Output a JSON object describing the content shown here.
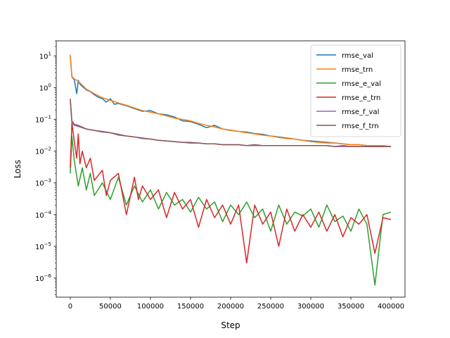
{
  "chart_data": {
    "type": "line",
    "title": "",
    "xlabel": "Step",
    "ylabel": "Loss",
    "xlim": [
      -17500,
      417500
    ],
    "ylim": [
      2.5e-07,
      30
    ],
    "yscale": "log",
    "grid": false,
    "legend_position": "top-right",
    "x_ticks": [
      0,
      50000,
      100000,
      150000,
      200000,
      250000,
      300000,
      350000,
      400000
    ],
    "x_tick_labels": [
      "0",
      "50000",
      "100000",
      "150000",
      "200000",
      "250000",
      "300000",
      "350000",
      "400000"
    ],
    "y_ticks": [
      1e-06,
      1e-05,
      0.0001,
      0.001,
      0.01,
      0.1,
      1,
      10
    ],
    "y_tick_labels": [
      {
        "base": "10",
        "exp": "−6"
      },
      {
        "base": "10",
        "exp": "−5"
      },
      {
        "base": "10",
        "exp": "−4"
      },
      {
        "base": "10",
        "exp": "−3"
      },
      {
        "base": "10",
        "exp": "−2"
      },
      {
        "base": "10",
        "exp": "−1"
      },
      {
        "base": "10",
        "exp": "0"
      },
      {
        "base": "10",
        "exp": "1"
      }
    ],
    "series": [
      {
        "name": "rmse_val",
        "color": "#1f77b4",
        "x": [
          0,
          2000,
          5000,
          8000,
          10000,
          12000,
          15000,
          20000,
          25000,
          30000,
          35000,
          40000,
          45000,
          50000,
          55000,
          60000,
          70000,
          80000,
          90000,
          100000,
          110000,
          120000,
          130000,
          140000,
          150000,
          160000,
          170000,
          180000,
          190000,
          200000,
          210000,
          220000,
          230000,
          240000,
          250000,
          260000,
          270000,
          280000,
          290000,
          300000,
          310000,
          320000,
          330000,
          340000,
          350000,
          360000,
          370000,
          380000,
          390000,
          400000
        ],
        "y": [
          10,
          2.2,
          1.8,
          0.65,
          1.7,
          1.3,
          1.1,
          0.85,
          0.75,
          0.6,
          0.5,
          0.45,
          0.35,
          0.45,
          0.3,
          0.32,
          0.27,
          0.22,
          0.18,
          0.19,
          0.15,
          0.14,
          0.12,
          0.09,
          0.085,
          0.07,
          0.055,
          0.065,
          0.05,
          0.045,
          0.042,
          0.04,
          0.036,
          0.034,
          0.03,
          0.028,
          0.026,
          0.024,
          0.022,
          0.021,
          0.02,
          0.019,
          0.018,
          0.017,
          0.016,
          0.016,
          0.015,
          0.015,
          0.014,
          0.014
        ]
      },
      {
        "name": "rmse_trn",
        "color": "#ff7f0e",
        "x": [
          0,
          2000,
          5000,
          10000,
          15000,
          20000,
          30000,
          40000,
          50000,
          60000,
          70000,
          80000,
          90000,
          100000,
          110000,
          120000,
          130000,
          140000,
          150000,
          160000,
          170000,
          180000,
          190000,
          200000,
          210000,
          220000,
          230000,
          240000,
          250000,
          260000,
          270000,
          280000,
          290000,
          300000,
          310000,
          320000,
          330000,
          340000,
          350000,
          360000,
          370000,
          380000,
          390000,
          400000
        ],
        "y": [
          11,
          2.3,
          1.9,
          1.6,
          1.2,
          0.9,
          0.65,
          0.48,
          0.4,
          0.33,
          0.28,
          0.23,
          0.19,
          0.17,
          0.15,
          0.13,
          0.11,
          0.1,
          0.09,
          0.075,
          0.065,
          0.058,
          0.05,
          0.046,
          0.042,
          0.038,
          0.035,
          0.032,
          0.03,
          0.027,
          0.025,
          0.024,
          0.022,
          0.02,
          0.019,
          0.018,
          0.018,
          0.017,
          0.016,
          0.016,
          0.015,
          0.015,
          0.015,
          0.014
        ]
      },
      {
        "name": "rmse_e_val",
        "color": "#2ca02c",
        "x": [
          0,
          2000,
          5000,
          10000,
          15000,
          20000,
          25000,
          30000,
          40000,
          50000,
          60000,
          70000,
          80000,
          90000,
          100000,
          110000,
          120000,
          130000,
          140000,
          150000,
          160000,
          170000,
          180000,
          190000,
          200000,
          210000,
          220000,
          230000,
          240000,
          250000,
          260000,
          270000,
          280000,
          290000,
          300000,
          310000,
          320000,
          330000,
          340000,
          350000,
          360000,
          370000,
          380000,
          390000,
          400000
        ],
        "y": [
          0.002,
          0.03,
          0.005,
          0.0008,
          0.003,
          0.0006,
          0.002,
          0.0004,
          0.001,
          0.0003,
          0.0015,
          0.0002,
          0.0008,
          0.00025,
          0.0006,
          0.00015,
          0.0005,
          0.0002,
          0.0003,
          0.00012,
          0.00035,
          0.00015,
          0.00025,
          6e-05,
          0.0002,
          0.0001,
          0.00025,
          8e-05,
          0.00015,
          3e-05,
          0.0002,
          5e-05,
          0.00012,
          9e-05,
          0.00015,
          4e-05,
          0.0002,
          6e-05,
          9e-05,
          3e-05,
          0.00015,
          5e-05,
          6e-07,
          0.0001,
          0.00012
        ]
      },
      {
        "name": "rmse_e_trn",
        "color": "#d62728",
        "x": [
          0,
          2000,
          5000,
          8000,
          10000,
          12000,
          15000,
          20000,
          25000,
          30000,
          40000,
          45000,
          50000,
          60000,
          70000,
          80000,
          85000,
          90000,
          100000,
          110000,
          120000,
          130000,
          140000,
          150000,
          160000,
          170000,
          180000,
          190000,
          200000,
          210000,
          220000,
          230000,
          240000,
          250000,
          260000,
          270000,
          280000,
          290000,
          300000,
          310000,
          320000,
          330000,
          340000,
          350000,
          360000,
          370000,
          380000,
          390000,
          400000
        ],
        "y": [
          0.003,
          0.08,
          0.02,
          0.006,
          0.035,
          0.004,
          0.01,
          0.003,
          0.006,
          0.0012,
          0.0025,
          0.0004,
          0.0012,
          0.002,
          0.0001,
          0.0015,
          0.0003,
          0.0008,
          0.0003,
          0.0006,
          8e-05,
          0.0005,
          0.00015,
          0.0003,
          4e-05,
          0.0003,
          8e-05,
          0.0002,
          5e-05,
          0.0002,
          3e-06,
          0.0002,
          5e-05,
          0.00012,
          1e-05,
          0.00015,
          3e-05,
          0.0001,
          4e-05,
          0.00012,
          3e-05,
          0.0001,
          2e-05,
          8e-05,
          5e-05,
          0.0001,
          6e-06,
          8e-05,
          7e-05
        ]
      },
      {
        "name": "rmse_f_val",
        "color": "#9467bd",
        "x": [
          0,
          2000,
          5000,
          10000,
          20000,
          30000,
          40000,
          50000,
          60000,
          70000,
          80000,
          90000,
          100000,
          110000,
          120000,
          130000,
          140000,
          150000,
          160000,
          170000,
          180000,
          190000,
          200000,
          210000,
          220000,
          230000,
          240000,
          250000,
          260000,
          270000,
          280000,
          290000,
          300000,
          310000,
          320000,
          330000,
          340000,
          350000,
          360000,
          370000,
          380000,
          390000,
          400000
        ],
        "y": [
          0.4,
          0.08,
          0.065,
          0.06,
          0.05,
          0.045,
          0.04,
          0.038,
          0.032,
          0.03,
          0.028,
          0.025,
          0.024,
          0.022,
          0.021,
          0.02,
          0.019,
          0.019,
          0.018,
          0.017,
          0.017,
          0.016,
          0.016,
          0.016,
          0.015,
          0.015,
          0.015,
          0.015,
          0.015,
          0.015,
          0.015,
          0.015,
          0.015,
          0.015,
          0.015,
          0.014,
          0.014,
          0.014,
          0.014,
          0.014,
          0.014,
          0.014,
          0.014
        ]
      },
      {
        "name": "rmse_f_trn",
        "color": "#8c564b",
        "x": [
          0,
          2000,
          5000,
          10000,
          20000,
          30000,
          40000,
          50000,
          60000,
          70000,
          80000,
          90000,
          100000,
          110000,
          120000,
          130000,
          140000,
          150000,
          160000,
          170000,
          180000,
          190000,
          200000,
          210000,
          220000,
          230000,
          240000,
          250000,
          260000,
          270000,
          280000,
          290000,
          300000,
          310000,
          320000,
          330000,
          340000,
          350000,
          360000,
          370000,
          380000,
          390000,
          400000
        ],
        "y": [
          0.45,
          0.09,
          0.07,
          0.065,
          0.05,
          0.045,
          0.042,
          0.038,
          0.034,
          0.03,
          0.028,
          0.026,
          0.024,
          0.022,
          0.021,
          0.02,
          0.019,
          0.018,
          0.018,
          0.017,
          0.017,
          0.016,
          0.016,
          0.016,
          0.015,
          0.016,
          0.015,
          0.015,
          0.015,
          0.015,
          0.015,
          0.015,
          0.015,
          0.015,
          0.015,
          0.014,
          0.015,
          0.014,
          0.014,
          0.014,
          0.014,
          0.014,
          0.014
        ]
      }
    ]
  }
}
